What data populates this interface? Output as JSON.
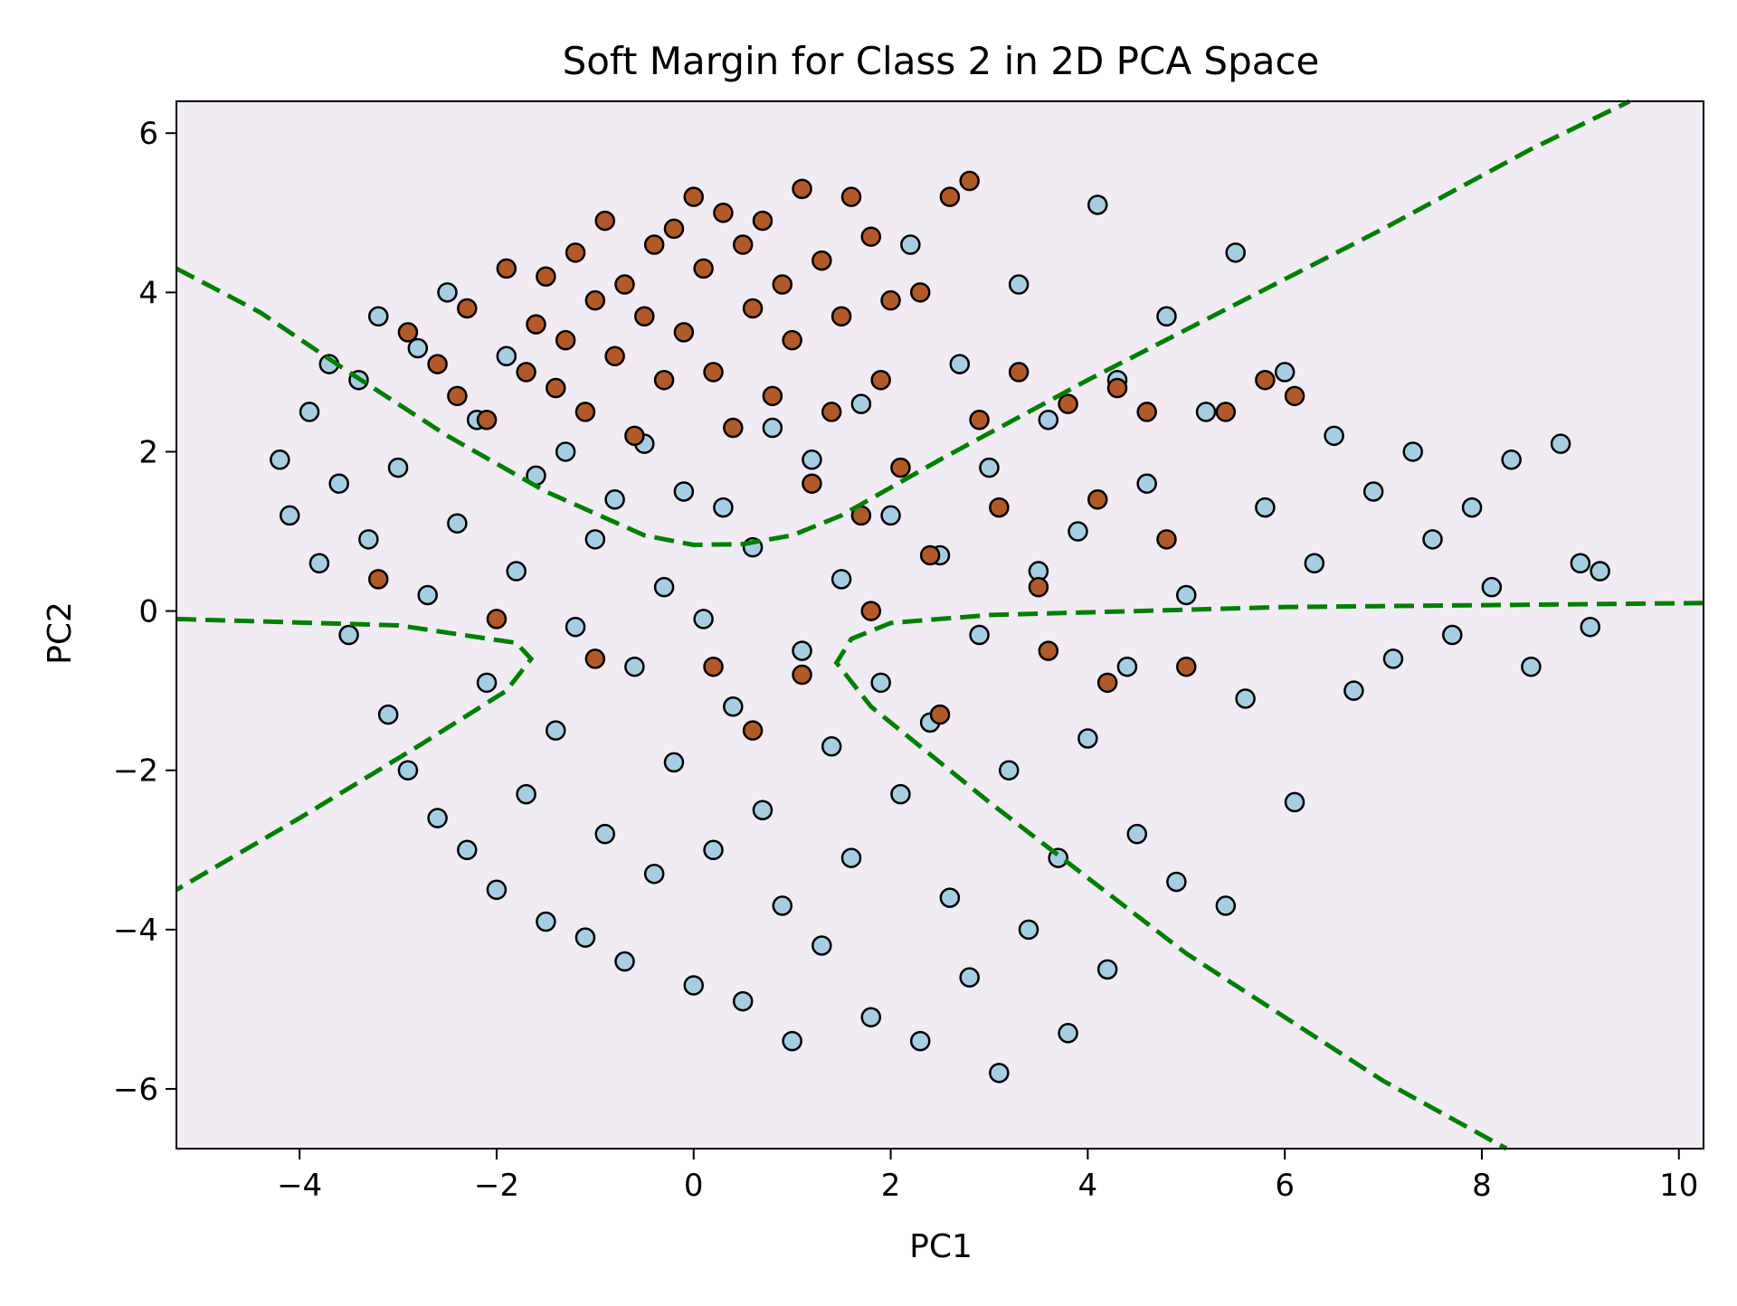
{
  "chart_data": {
    "type": "scatter",
    "title": "Soft Margin for Class 2 in 2D PCA Space",
    "xlabel": "PC1",
    "ylabel": "PC2",
    "xlim": [
      -5.25,
      10.25
    ],
    "ylim": [
      -6.75,
      6.4
    ],
    "xticks": [
      -4,
      -2,
      0,
      2,
      4,
      6,
      8,
      10
    ],
    "yticks": [
      -6,
      -4,
      -2,
      0,
      2,
      4,
      6
    ],
    "xtick_labels": [
      "−4",
      "−2",
      "0",
      "2",
      "4",
      "6",
      "8",
      "10"
    ],
    "ytick_labels": [
      "−6",
      "−4",
      "−2",
      "0",
      "2",
      "4",
      "6"
    ],
    "grid": false,
    "legend": false,
    "colors": {
      "background": "#f1ebf4",
      "other_class": "#a6cee3",
      "class_2": "#b15928",
      "marker_edge": "#000000",
      "margin_line": "#008000"
    },
    "series": [
      {
        "values": [
          [
            -4.2,
            1.9
          ],
          [
            -4.1,
            1.2
          ],
          [
            -3.9,
            2.5
          ],
          [
            -3.8,
            0.6
          ],
          [
            -3.7,
            3.1
          ],
          [
            -3.6,
            1.6
          ],
          [
            -3.5,
            -0.3
          ],
          [
            -3.4,
            2.9
          ],
          [
            -3.3,
            0.9
          ],
          [
            -3.2,
            3.7
          ],
          [
            -3.1,
            -1.3
          ],
          [
            -3.0,
            1.8
          ],
          [
            -2.9,
            -2.0
          ],
          [
            -2.8,
            3.3
          ],
          [
            -2.7,
            0.2
          ],
          [
            -2.6,
            -2.6
          ],
          [
            -2.5,
            4.0
          ],
          [
            -2.4,
            1.1
          ],
          [
            -2.3,
            -3.0
          ],
          [
            -2.2,
            2.4
          ],
          [
            -2.1,
            -0.9
          ],
          [
            -2.0,
            -3.5
          ],
          [
            -1.9,
            3.2
          ],
          [
            -1.8,
            0.5
          ],
          [
            -1.7,
            -2.3
          ],
          [
            -1.6,
            1.7
          ],
          [
            -1.5,
            -3.9
          ],
          [
            -1.4,
            -1.5
          ],
          [
            -1.3,
            2.0
          ],
          [
            -1.2,
            -0.2
          ],
          [
            -1.1,
            -4.1
          ],
          [
            -1.0,
            0.9
          ],
          [
            -0.9,
            -2.8
          ],
          [
            -0.8,
            1.4
          ],
          [
            -0.7,
            -4.4
          ],
          [
            -0.6,
            -0.7
          ],
          [
            -0.5,
            2.1
          ],
          [
            -0.4,
            -3.3
          ],
          [
            -0.3,
            0.3
          ],
          [
            -0.2,
            -1.9
          ],
          [
            -0.1,
            1.5
          ],
          [
            0.0,
            -4.7
          ],
          [
            0.1,
            -0.1
          ],
          [
            0.2,
            -3.0
          ],
          [
            0.3,
            1.3
          ],
          [
            0.4,
            -1.2
          ],
          [
            0.5,
            -4.9
          ],
          [
            0.6,
            0.8
          ],
          [
            0.7,
            -2.5
          ],
          [
            0.8,
            2.3
          ],
          [
            0.9,
            -3.7
          ],
          [
            1.0,
            -5.4
          ],
          [
            1.1,
            -0.5
          ],
          [
            1.2,
            1.9
          ],
          [
            1.3,
            -4.2
          ],
          [
            1.4,
            -1.7
          ],
          [
            1.5,
            0.4
          ],
          [
            1.6,
            -3.1
          ],
          [
            1.7,
            2.6
          ],
          [
            1.8,
            -5.1
          ],
          [
            1.9,
            -0.9
          ],
          [
            2.0,
            1.2
          ],
          [
            2.1,
            -2.3
          ],
          [
            2.2,
            4.6
          ],
          [
            2.3,
            -5.4
          ],
          [
            2.4,
            -1.4
          ],
          [
            2.5,
            0.7
          ],
          [
            2.6,
            -3.6
          ],
          [
            2.7,
            3.1
          ],
          [
            2.8,
            -4.6
          ],
          [
            2.9,
            -0.3
          ],
          [
            3.0,
            1.8
          ],
          [
            3.1,
            -5.8
          ],
          [
            3.2,
            -2.0
          ],
          [
            3.3,
            4.1
          ],
          [
            3.4,
            -4.0
          ],
          [
            3.5,
            0.5
          ],
          [
            3.6,
            2.4
          ],
          [
            3.7,
            -3.1
          ],
          [
            3.8,
            -5.3
          ],
          [
            3.9,
            1.0
          ],
          [
            4.0,
            -1.6
          ],
          [
            4.1,
            5.1
          ],
          [
            4.2,
            -4.5
          ],
          [
            4.3,
            2.9
          ],
          [
            4.4,
            -0.7
          ],
          [
            4.5,
            -2.8
          ],
          [
            4.6,
            1.6
          ],
          [
            4.8,
            3.7
          ],
          [
            4.9,
            -3.4
          ],
          [
            5.0,
            0.2
          ],
          [
            5.2,
            2.5
          ],
          [
            5.4,
            -3.7
          ],
          [
            5.5,
            4.5
          ],
          [
            5.6,
            -1.1
          ],
          [
            5.8,
            1.3
          ],
          [
            6.0,
            3.0
          ],
          [
            6.1,
            -2.4
          ],
          [
            6.3,
            0.6
          ],
          [
            6.5,
            2.2
          ],
          [
            6.7,
            -1.0
          ],
          [
            6.9,
            1.5
          ],
          [
            7.1,
            -0.6
          ],
          [
            7.3,
            2.0
          ],
          [
            7.5,
            0.9
          ],
          [
            7.7,
            -0.3
          ],
          [
            7.9,
            1.3
          ],
          [
            8.1,
            0.3
          ],
          [
            8.3,
            1.9
          ],
          [
            8.5,
            -0.7
          ],
          [
            8.8,
            2.1
          ],
          [
            9.0,
            0.6
          ],
          [
            9.1,
            -0.2
          ],
          [
            9.2,
            0.5
          ]
        ]
      },
      {
        "values": [
          [
            -2.9,
            3.5
          ],
          [
            -2.6,
            3.1
          ],
          [
            -2.4,
            2.7
          ],
          [
            -2.3,
            3.8
          ],
          [
            -2.1,
            2.4
          ],
          [
            -1.9,
            4.3
          ],
          [
            -1.7,
            3.0
          ],
          [
            -1.6,
            3.6
          ],
          [
            -1.5,
            4.2
          ],
          [
            -1.4,
            2.8
          ],
          [
            -1.3,
            3.4
          ],
          [
            -1.2,
            4.5
          ],
          [
            -1.1,
            2.5
          ],
          [
            -1.0,
            3.9
          ],
          [
            -0.9,
            4.9
          ],
          [
            -0.8,
            3.2
          ],
          [
            -0.7,
            4.1
          ],
          [
            -0.6,
            2.2
          ],
          [
            -0.5,
            3.7
          ],
          [
            -0.4,
            4.6
          ],
          [
            -0.3,
            2.9
          ],
          [
            -0.2,
            4.8
          ],
          [
            -0.1,
            3.5
          ],
          [
            0.0,
            5.2
          ],
          [
            0.1,
            4.3
          ],
          [
            0.2,
            3.0
          ],
          [
            0.3,
            5.0
          ],
          [
            0.4,
            2.3
          ],
          [
            0.5,
            4.6
          ],
          [
            0.6,
            3.8
          ],
          [
            0.7,
            4.9
          ],
          [
            0.8,
            2.7
          ],
          [
            0.9,
            4.1
          ],
          [
            1.0,
            3.4
          ],
          [
            1.1,
            5.3
          ],
          [
            1.2,
            1.6
          ],
          [
            1.3,
            4.4
          ],
          [
            1.4,
            2.5
          ],
          [
            1.5,
            3.7
          ],
          [
            1.6,
            5.2
          ],
          [
            1.7,
            1.2
          ],
          [
            1.8,
            4.7
          ],
          [
            1.9,
            2.9
          ],
          [
            2.0,
            3.9
          ],
          [
            2.1,
            1.8
          ],
          [
            2.3,
            4.0
          ],
          [
            2.4,
            0.7
          ],
          [
            2.6,
            5.2
          ],
          [
            2.8,
            5.4
          ],
          [
            2.9,
            2.4
          ],
          [
            3.1,
            1.3
          ],
          [
            3.3,
            3.0
          ],
          [
            3.5,
            0.3
          ],
          [
            3.8,
            2.6
          ],
          [
            4.1,
            1.4
          ],
          [
            4.3,
            2.8
          ],
          [
            4.6,
            2.5
          ],
          [
            4.8,
            0.9
          ],
          [
            5.0,
            -0.7
          ],
          [
            5.4,
            2.5
          ],
          [
            5.8,
            2.9
          ],
          [
            6.1,
            2.7
          ],
          [
            -2.0,
            -0.1
          ],
          [
            -1.0,
            -0.6
          ],
          [
            0.2,
            -0.7
          ],
          [
            0.6,
            -1.5
          ],
          [
            1.1,
            -0.8
          ],
          [
            1.8,
            0.0
          ],
          [
            2.5,
            -1.3
          ],
          [
            3.6,
            -0.5
          ],
          [
            4.2,
            -0.9
          ],
          [
            -3.2,
            0.4
          ]
        ]
      }
    ],
    "margin_lines": [
      [
        [
          -5.25,
          4.3
        ],
        [
          -4.4,
          3.75
        ],
        [
          -3.5,
          3.0
        ],
        [
          -2.5,
          2.2
        ],
        [
          -1.5,
          1.5
        ],
        [
          -0.5,
          0.95
        ],
        [
          0.0,
          0.83
        ],
        [
          0.5,
          0.84
        ],
        [
          1.0,
          0.95
        ],
        [
          1.5,
          1.2
        ],
        [
          2.5,
          1.9
        ],
        [
          4.0,
          2.9
        ],
        [
          5.5,
          3.85
        ],
        [
          7.0,
          4.8
        ],
        [
          8.5,
          5.8
        ],
        [
          9.5,
          6.4
        ]
      ],
      [
        [
          -5.25,
          -0.1
        ],
        [
          -3.0,
          -0.18
        ],
        [
          -1.8,
          -0.4
        ],
        [
          -1.65,
          -0.6
        ],
        [
          -1.9,
          -1.0
        ],
        [
          -2.8,
          -1.7
        ],
        [
          -4.0,
          -2.6
        ],
        [
          -5.25,
          -3.5
        ]
      ],
      [
        [
          10.25,
          0.1
        ],
        [
          6.0,
          0.05
        ],
        [
          3.0,
          -0.05
        ],
        [
          2.0,
          -0.15
        ],
        [
          1.6,
          -0.35
        ],
        [
          1.45,
          -0.65
        ],
        [
          1.8,
          -1.2
        ],
        [
          3.0,
          -2.4
        ],
        [
          5.0,
          -4.3
        ],
        [
          7.0,
          -5.9
        ],
        [
          8.25,
          -6.75
        ]
      ]
    ]
  }
}
